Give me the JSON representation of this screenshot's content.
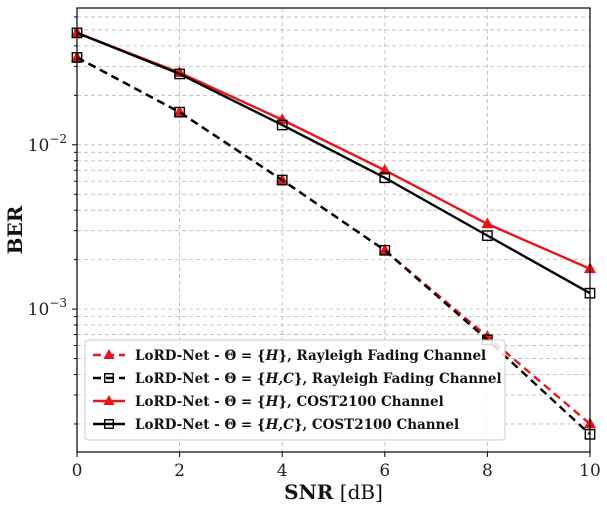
{
  "chart_data": {
    "type": "line",
    "x_axis": {
      "label_bold": "SNR",
      "label_unit": "[dB]",
      "range": [
        0,
        10
      ],
      "ticks": [
        "0",
        "2",
        "4",
        "6",
        "8",
        "10"
      ]
    },
    "y_axis": {
      "label": "BER",
      "scale": "log",
      "range": [
        0.000135,
        0.068
      ],
      "ticks": [
        {
          "base": "10",
          "exp": "−2",
          "value": 0.01
        },
        {
          "base": "10",
          "exp": "−3",
          "value": 0.001
        }
      ]
    },
    "grid": true,
    "legend_position": "lower-left",
    "x": [
      0,
      2,
      4,
      6,
      8,
      10
    ],
    "series": [
      {
        "name": "LoRD-Net - Θ = {H}, Rayleigh Fading Channel",
        "color": "#e8141c",
        "dash": true,
        "marker": "triangle",
        "values": [
          0.034,
          0.0158,
          0.0061,
          0.00228,
          0.00068,
          0.0002
        ]
      },
      {
        "name": "LoRD-Net - Θ = {H,C}, Rayleigh Fading Channel",
        "color": "#000000",
        "dash": true,
        "marker": "square",
        "values": [
          0.034,
          0.0158,
          0.0061,
          0.00228,
          0.00065,
          0.000173
        ]
      },
      {
        "name": "LoRD-Net - Θ = {H}, COST2100 Channel",
        "color": "#e8141c",
        "dash": false,
        "marker": "triangle",
        "values": [
          0.048,
          0.0275,
          0.0142,
          0.007,
          0.0033,
          0.00176
        ]
      },
      {
        "name": "LoRD-Net - Θ = {H,C}, COST2100 Channel",
        "color": "#000000",
        "dash": false,
        "marker": "square",
        "values": [
          0.048,
          0.027,
          0.0132,
          0.0063,
          0.0028,
          0.00125
        ]
      }
    ],
    "legend": [
      {
        "pre": "LoRD-Net - ",
        "theta": "Θ",
        "eq": " = {",
        "set": "H",
        "post": "}, Rayleigh Fading Channel"
      },
      {
        "pre": "LoRD-Net - ",
        "theta": "Θ",
        "eq": " = {",
        "set": "H,C",
        "post": "}, Rayleigh Fading Channel"
      },
      {
        "pre": "LoRD-Net - ",
        "theta": "Θ",
        "eq": " = {",
        "set": "H",
        "post": "}, COST2100 Channel"
      },
      {
        "pre": "LoRD-Net - ",
        "theta": "Θ",
        "eq": " = {",
        "set": "H,C",
        "post": "}, COST2100 Channel"
      }
    ]
  }
}
